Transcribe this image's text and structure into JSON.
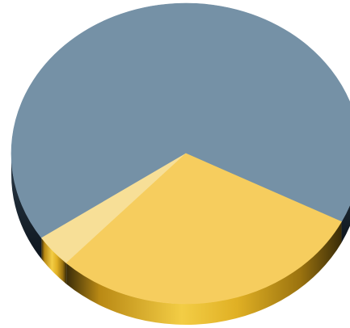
{
  "chart_data": {
    "type": "pie",
    "style": "3d",
    "title": "",
    "legend": "none",
    "data_labels": false,
    "slices": [
      {
        "value": 67.0,
        "color": "#7591a6"
      },
      {
        "value": 3.5,
        "color": "#f7df97"
      },
      {
        "value": 29.5,
        "color": "#f6cd5e"
      }
    ]
  },
  "colors": {
    "background": "#ffffff",
    "depth_dark": "#1b2733",
    "depth_gold": "#d6a21a",
    "depth_gold_light": "#f3cd45"
  }
}
